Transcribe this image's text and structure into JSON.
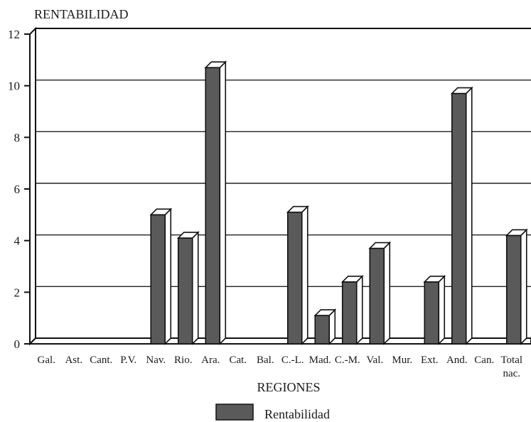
{
  "chart_data": {
    "type": "bar",
    "title": "",
    "ylabel": "RENTABILIDAD",
    "xlabel": "REGIONES",
    "categories": [
      "Gal.",
      "Ast.",
      "Cant.",
      "P.V.",
      "Nav.",
      "Rio.",
      "Ara.",
      "Cat.",
      "Bal.",
      "C.-L.",
      "Mad.",
      "C.-M.",
      "Val.",
      "Mur.",
      "Ext.",
      "And.",
      "Can.",
      "Total nac."
    ],
    "series": [
      {
        "name": "Rentabilidad",
        "values": [
          0,
          0,
          0,
          0,
          5.0,
          4.1,
          10.7,
          0,
          0,
          5.1,
          1.1,
          2.4,
          3.7,
          0,
          2.4,
          9.7,
          0,
          4.2
        ]
      }
    ],
    "ylim": [
      0,
      12
    ],
    "yticks": [
      0,
      2,
      4,
      6,
      8,
      10,
      12
    ],
    "grid": true,
    "legend": "bottom",
    "bar_color": "#5a5a5a"
  }
}
